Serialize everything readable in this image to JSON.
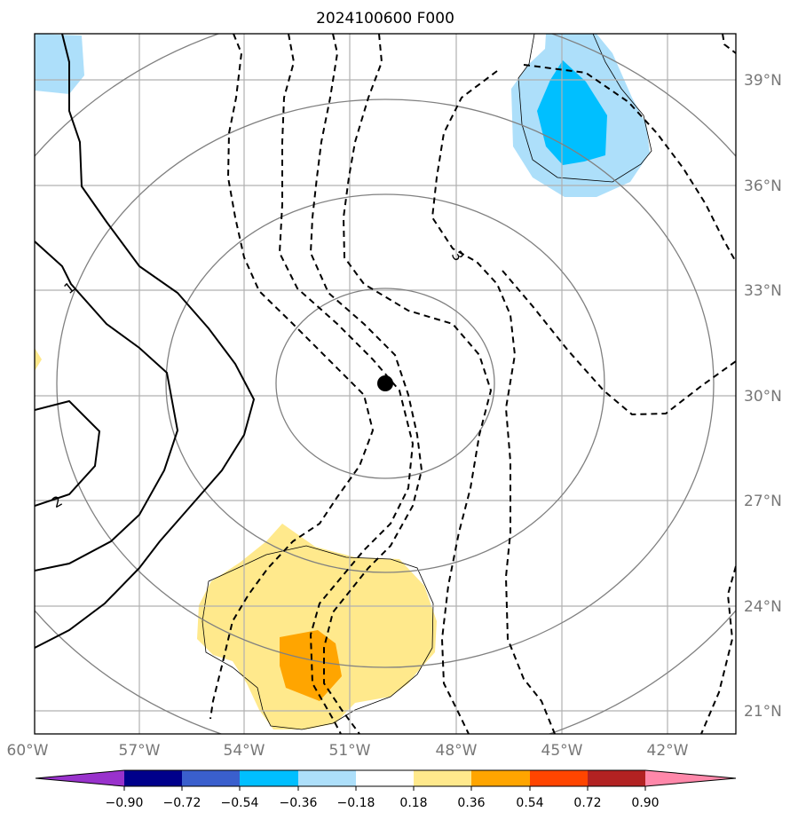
{
  "title": "2024100600 F000",
  "map": {
    "lon_range": [
      -60,
      -40
    ],
    "lat_range": [
      20,
      40
    ],
    "lon_ticks": [
      "60°W",
      "57°W",
      "54°W",
      "51°W",
      "48°W",
      "45°W",
      "42°W"
    ],
    "lat_ticks": [
      "39°N",
      "36°N",
      "33°N",
      "30°N",
      "27°N",
      "24°N",
      "21°N"
    ],
    "gridlines": true,
    "center_marker": {
      "lon": -50,
      "lat": 30.3
    },
    "range_rings": 4
  },
  "contours": {
    "solid_labels": [
      "1",
      "2"
    ],
    "dashed_labels": [
      "3"
    ]
  },
  "colorbar": {
    "ticks": [
      "−0.90",
      "−0.72",
      "−0.54",
      "−0.36",
      "−0.18",
      "0.18",
      "0.36",
      "0.54",
      "0.72",
      "0.90"
    ],
    "colors": [
      "#9932CC",
      "#00008B",
      "#3A5FCD",
      "#00BFFF",
      "#ADDFFA",
      "#FFFFFF",
      "#FFE98C",
      "#FFA500",
      "#FF4500",
      "#B22222",
      "#FF88AA"
    ]
  }
}
